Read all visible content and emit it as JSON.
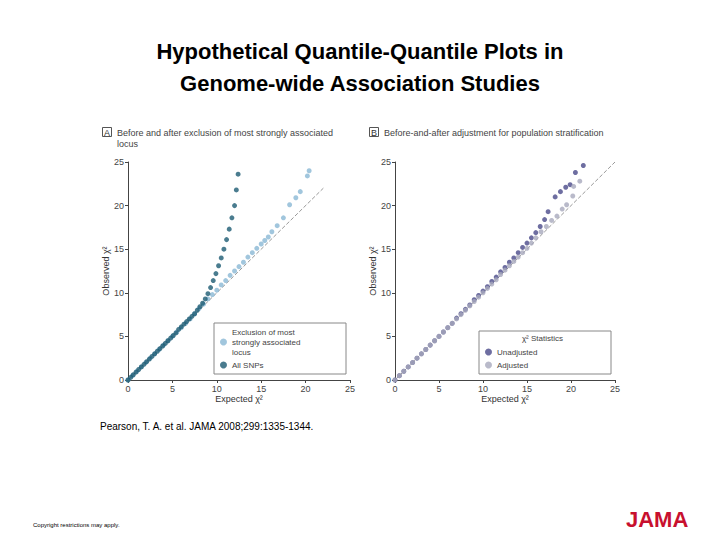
{
  "title": "Hypothetical Quantile-Quantile Plots in Genome-wide Association Studies",
  "source": "Pearson, T. A. et al. JAMA 2008;299:1335-1344.",
  "footer": "Copyright restrictions may apply.",
  "logo": "JAMA",
  "chart_data": [
    {
      "type": "scatter",
      "panel_label": "A",
      "title": "Before and after exclusion of most strongly associated locus",
      "xlabel": "Expected χ²",
      "ylabel": "Observed χ²",
      "xlim": [
        0,
        25
      ],
      "ylim": [
        0,
        25
      ],
      "xticks": [
        0,
        5,
        10,
        15,
        20,
        25
      ],
      "yticks": [
        0,
        5,
        10,
        15,
        20,
        25
      ],
      "grid": false,
      "legend": "lower right",
      "series": [
        {
          "type": "line",
          "line_style": "dashed",
          "color": "#999999",
          "x": [
            0,
            22
          ],
          "values": [
            0,
            22
          ]
        },
        {
          "name": "Exclusion of most strongly associated locus",
          "color": "#8ab8d4",
          "marker": "circle",
          "x": [
            0,
            0.5,
            1,
            1.5,
            2,
            2.5,
            3,
            3.5,
            4,
            4.5,
            5,
            5.5,
            6,
            6.5,
            7,
            7.5,
            8,
            8.5,
            9,
            9.5,
            10,
            10.5,
            11,
            11.5,
            12,
            12.5,
            13,
            13.5,
            14,
            14.5,
            15,
            15.4,
            15.8,
            16.2,
            16.8,
            17.5,
            18.2,
            18.9,
            19.4,
            20.2,
            20.4
          ],
          "values": [
            0,
            0.5,
            1,
            1.5,
            2,
            2.5,
            3,
            3.5,
            4,
            4.5,
            5,
            5.5,
            6,
            6.5,
            7,
            7.6,
            8.2,
            8.7,
            9.3,
            9.8,
            10.3,
            10.9,
            11.4,
            12,
            12.5,
            13,
            13.5,
            14.1,
            14.6,
            15.1,
            15.6,
            16,
            16.4,
            17,
            17.7,
            18.6,
            20.1,
            20.9,
            21.6,
            23.4,
            24
          ]
        },
        {
          "name": "All SNPs",
          "color": "#1d5b73",
          "marker": "circle",
          "x": [
            0,
            0.3,
            0.6,
            0.9,
            1.2,
            1.5,
            1.8,
            2.1,
            2.4,
            2.7,
            3,
            3.3,
            3.6,
            3.9,
            4.2,
            4.5,
            4.8,
            5.1,
            5.4,
            5.7,
            6,
            6.3,
            6.6,
            6.9,
            7.2,
            7.5,
            7.8,
            8.1,
            8.4,
            8.7,
            9,
            9.3,
            9.6,
            9.9,
            10.2,
            10.5,
            10.8,
            11.1,
            11.4,
            11.7,
            12,
            12.2,
            12.4
          ],
          "values": [
            0,
            0.3,
            0.6,
            0.9,
            1.2,
            1.5,
            1.8,
            2.1,
            2.4,
            2.7,
            3,
            3.3,
            3.6,
            3.9,
            4.2,
            4.5,
            4.8,
            5.1,
            5.4,
            5.8,
            6.1,
            6.4,
            6.7,
            7,
            7.3,
            7.6,
            8,
            8.4,
            8.8,
            9.3,
            9.9,
            10.6,
            11.4,
            12.2,
            13.1,
            14,
            15,
            16.1,
            17.3,
            18.6,
            20,
            21.8,
            23.6
          ]
        }
      ]
    },
    {
      "type": "scatter",
      "panel_label": "B",
      "title": "Before-and-after adjustment for population stratification",
      "xlabel": "Expected χ²",
      "ylabel": "Observed χ²",
      "xlim": [
        0,
        25
      ],
      "ylim": [
        0,
        25
      ],
      "xticks": [
        0,
        5,
        10,
        15,
        20,
        25
      ],
      "yticks": [
        0,
        5,
        10,
        15,
        20,
        25
      ],
      "grid": false,
      "legend": "lower right",
      "legend_title": "χ² Statistics",
      "series": [
        {
          "type": "line",
          "line_style": "dashed",
          "color": "#999999",
          "x": [
            0,
            25
          ],
          "values": [
            0,
            25
          ]
        },
        {
          "name": "Unadjusted",
          "color": "#4a4a8a",
          "marker": "circle",
          "x": [
            0,
            0.5,
            1,
            1.5,
            2,
            2.5,
            3,
            3.5,
            4,
            4.5,
            5,
            5.5,
            6,
            6.5,
            7,
            7.5,
            8,
            8.5,
            9,
            9.5,
            10,
            10.5,
            11,
            11.5,
            12,
            12.5,
            13,
            13.5,
            14,
            14.5,
            15,
            15.5,
            16,
            16.5,
            17,
            17.4,
            18.2,
            18.8,
            19.4,
            19.9,
            20.5,
            21.4
          ],
          "values": [
            0,
            0.5,
            1,
            1.5,
            2,
            2.5,
            3,
            3.5,
            4,
            4.5,
            5,
            5.5,
            6,
            6.5,
            7.1,
            7.6,
            8.1,
            8.6,
            9.2,
            9.7,
            10.2,
            10.7,
            11.3,
            11.8,
            12.4,
            12.9,
            13.5,
            14,
            14.6,
            15.2,
            15.7,
            16.3,
            16.9,
            17.6,
            18.4,
            19.3,
            21,
            21.6,
            22.1,
            22.4,
            23.8,
            24.6
          ]
        },
        {
          "name": "Adjusted",
          "color": "#a7a9bd",
          "marker": "circle",
          "x": [
            0,
            0.5,
            1,
            1.5,
            2,
            2.5,
            3,
            3.5,
            4,
            4.5,
            5,
            5.5,
            6,
            6.5,
            7,
            7.5,
            8,
            8.5,
            9,
            9.5,
            10,
            10.5,
            11,
            11.5,
            12,
            12.5,
            13,
            13.5,
            14,
            14.5,
            15,
            15.5,
            16,
            16.6,
            17.2,
            17.8,
            18.4,
            19,
            19.5,
            20.2,
            20.3,
            21
          ],
          "values": [
            0,
            0.5,
            1,
            1.5,
            2,
            2.5,
            3,
            3.5,
            4,
            4.5,
            5,
            5.5,
            6,
            6.5,
            7,
            7.5,
            8,
            8.5,
            9,
            9.5,
            10,
            10.5,
            11,
            11.5,
            12.1,
            12.6,
            13.1,
            13.6,
            14.1,
            14.6,
            15.1,
            15.7,
            16.3,
            17,
            17.6,
            18.3,
            18.8,
            19.6,
            20.1,
            21.1,
            22.2,
            22.8
          ]
        }
      ]
    }
  ]
}
